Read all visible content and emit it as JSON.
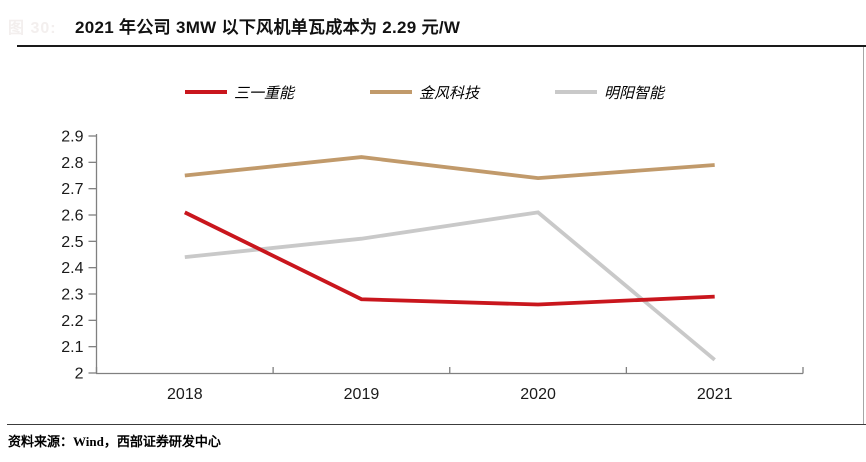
{
  "figure": {
    "faint_label": "图 30:",
    "title": "2021 年公司 3MW 以下风机单瓦成本为 2.29 元/W"
  },
  "legend": {
    "items": [
      {
        "label": "三一重能",
        "color": "#c9161d"
      },
      {
        "label": "金风科技",
        "color": "#c19a6b"
      },
      {
        "label": "明阳智能",
        "color": "#c9c9c9"
      }
    ]
  },
  "chart_data": {
    "type": "line",
    "categories": [
      "2018",
      "2019",
      "2020",
      "2021"
    ],
    "series": [
      {
        "name": "三一重能",
        "color": "#c9161d",
        "values": [
          2.61,
          2.28,
          2.26,
          2.29
        ]
      },
      {
        "name": "金风科技",
        "color": "#c19a6b",
        "values": [
          2.75,
          2.82,
          2.74,
          2.79
        ]
      },
      {
        "name": "明阳智能",
        "color": "#c9c9c9",
        "values": [
          2.44,
          2.51,
          2.61,
          2.05
        ]
      }
    ],
    "ylim": [
      2.0,
      2.9
    ],
    "ytick_step": 0.1,
    "grid": false,
    "legend_position": "top"
  },
  "source": {
    "text": "资料来源：Wind，西部证券研发中心"
  },
  "style": {
    "axis_color": "#808080",
    "tick_label_color": "#1a1a1a",
    "title_rule_color": "#1a1a1a"
  }
}
